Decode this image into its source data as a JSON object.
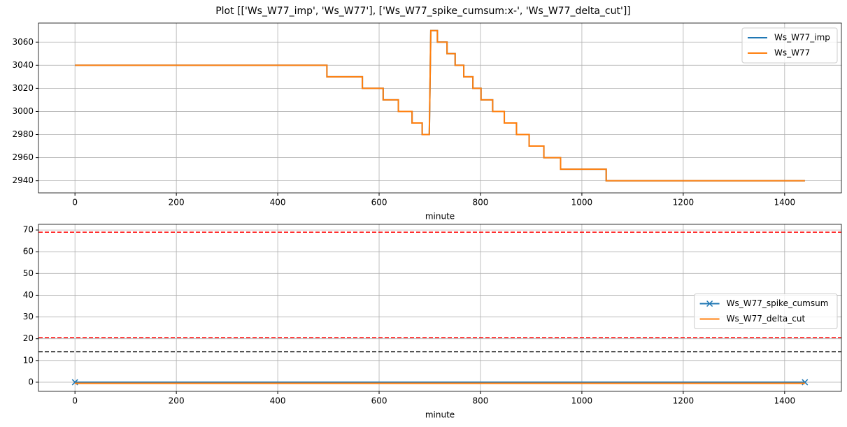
{
  "title": "Plot [['Ws_W77_imp', 'Ws_W77'], ['Ws_W77_spike_cumsum:x-', 'Ws_W77_delta_cut']]",
  "chart_data": [
    {
      "type": "line",
      "xlabel": "minute",
      "grid": true,
      "legend": "upper right",
      "xlim": [
        -72,
        1512
      ],
      "xticks": [
        0,
        200,
        400,
        600,
        800,
        1000,
        1200,
        1400
      ],
      "ylim": [
        2929.5,
        3076.5
      ],
      "yticks": [
        2940,
        2960,
        2980,
        3000,
        3020,
        3040,
        3060
      ],
      "series": [
        {
          "name": "Ws_W77_imp",
          "color": "#1f77b4",
          "x": [
            0,
            497,
            497,
            567,
            567,
            608,
            608,
            638,
            638,
            665,
            665,
            685,
            685,
            699,
            702,
            715,
            715,
            734,
            734,
            750,
            750,
            767,
            767,
            785,
            785,
            801,
            801,
            824,
            824,
            847,
            847,
            871,
            871,
            896,
            896,
            925,
            925,
            958,
            958,
            1048,
            1048,
            1440
          ],
          "values": [
            3040,
            3040,
            3030,
            3030,
            3020,
            3020,
            3010,
            3010,
            3000,
            3000,
            2990,
            2990,
            2980,
            2980,
            3070,
            3070,
            3060,
            3060,
            3050,
            3050,
            3040,
            3040,
            3030,
            3030,
            3020,
            3020,
            3010,
            3010,
            3000,
            3000,
            2990,
            2990,
            2980,
            2980,
            2970,
            2970,
            2960,
            2960,
            2950,
            2950,
            2940,
            2940
          ]
        },
        {
          "name": "Ws_W77",
          "color": "#ff7f0e",
          "x": [
            0,
            497,
            497,
            567,
            567,
            608,
            608,
            638,
            638,
            665,
            665,
            685,
            685,
            699,
            702,
            715,
            715,
            734,
            734,
            750,
            750,
            767,
            767,
            785,
            785,
            801,
            801,
            824,
            824,
            847,
            847,
            871,
            871,
            896,
            896,
            925,
            925,
            958,
            958,
            1048,
            1048,
            1440
          ],
          "values": [
            3040,
            3040,
            3030,
            3030,
            3020,
            3020,
            3010,
            3010,
            3000,
            3000,
            2990,
            2990,
            2980,
            2980,
            3070,
            3070,
            3060,
            3060,
            3050,
            3050,
            3040,
            3040,
            3030,
            3030,
            3020,
            3020,
            3010,
            3010,
            3000,
            3000,
            2990,
            2990,
            2980,
            2980,
            2970,
            2970,
            2960,
            2960,
            2950,
            2950,
            2940,
            2940
          ]
        }
      ]
    },
    {
      "type": "line",
      "xlabel": "minute",
      "grid": true,
      "legend": "center right",
      "xlim": [
        -72,
        1512
      ],
      "xticks": [
        0,
        200,
        400,
        600,
        800,
        1000,
        1200,
        1400
      ],
      "ylim": [
        -4.2,
        72.6
      ],
      "yticks": [
        0,
        10,
        20,
        30,
        40,
        50,
        60,
        70
      ],
      "hlines": [
        {
          "value": 69,
          "color": "#ff0000"
        },
        {
          "value": 20.5,
          "color": "#ff0000"
        },
        {
          "value": 14,
          "color": "#000000"
        }
      ],
      "series": [
        {
          "name": "Ws_W77_spike_cumsum",
          "color": "#1f77b4",
          "marker": "x",
          "x": [
            0,
            1440
          ],
          "values": [
            0,
            0
          ]
        },
        {
          "name": "Ws_W77_delta_cut",
          "color": "#ff7f0e",
          "x": [
            0,
            1440
          ],
          "values": [
            -0.5,
            -0.5
          ]
        }
      ]
    }
  ]
}
